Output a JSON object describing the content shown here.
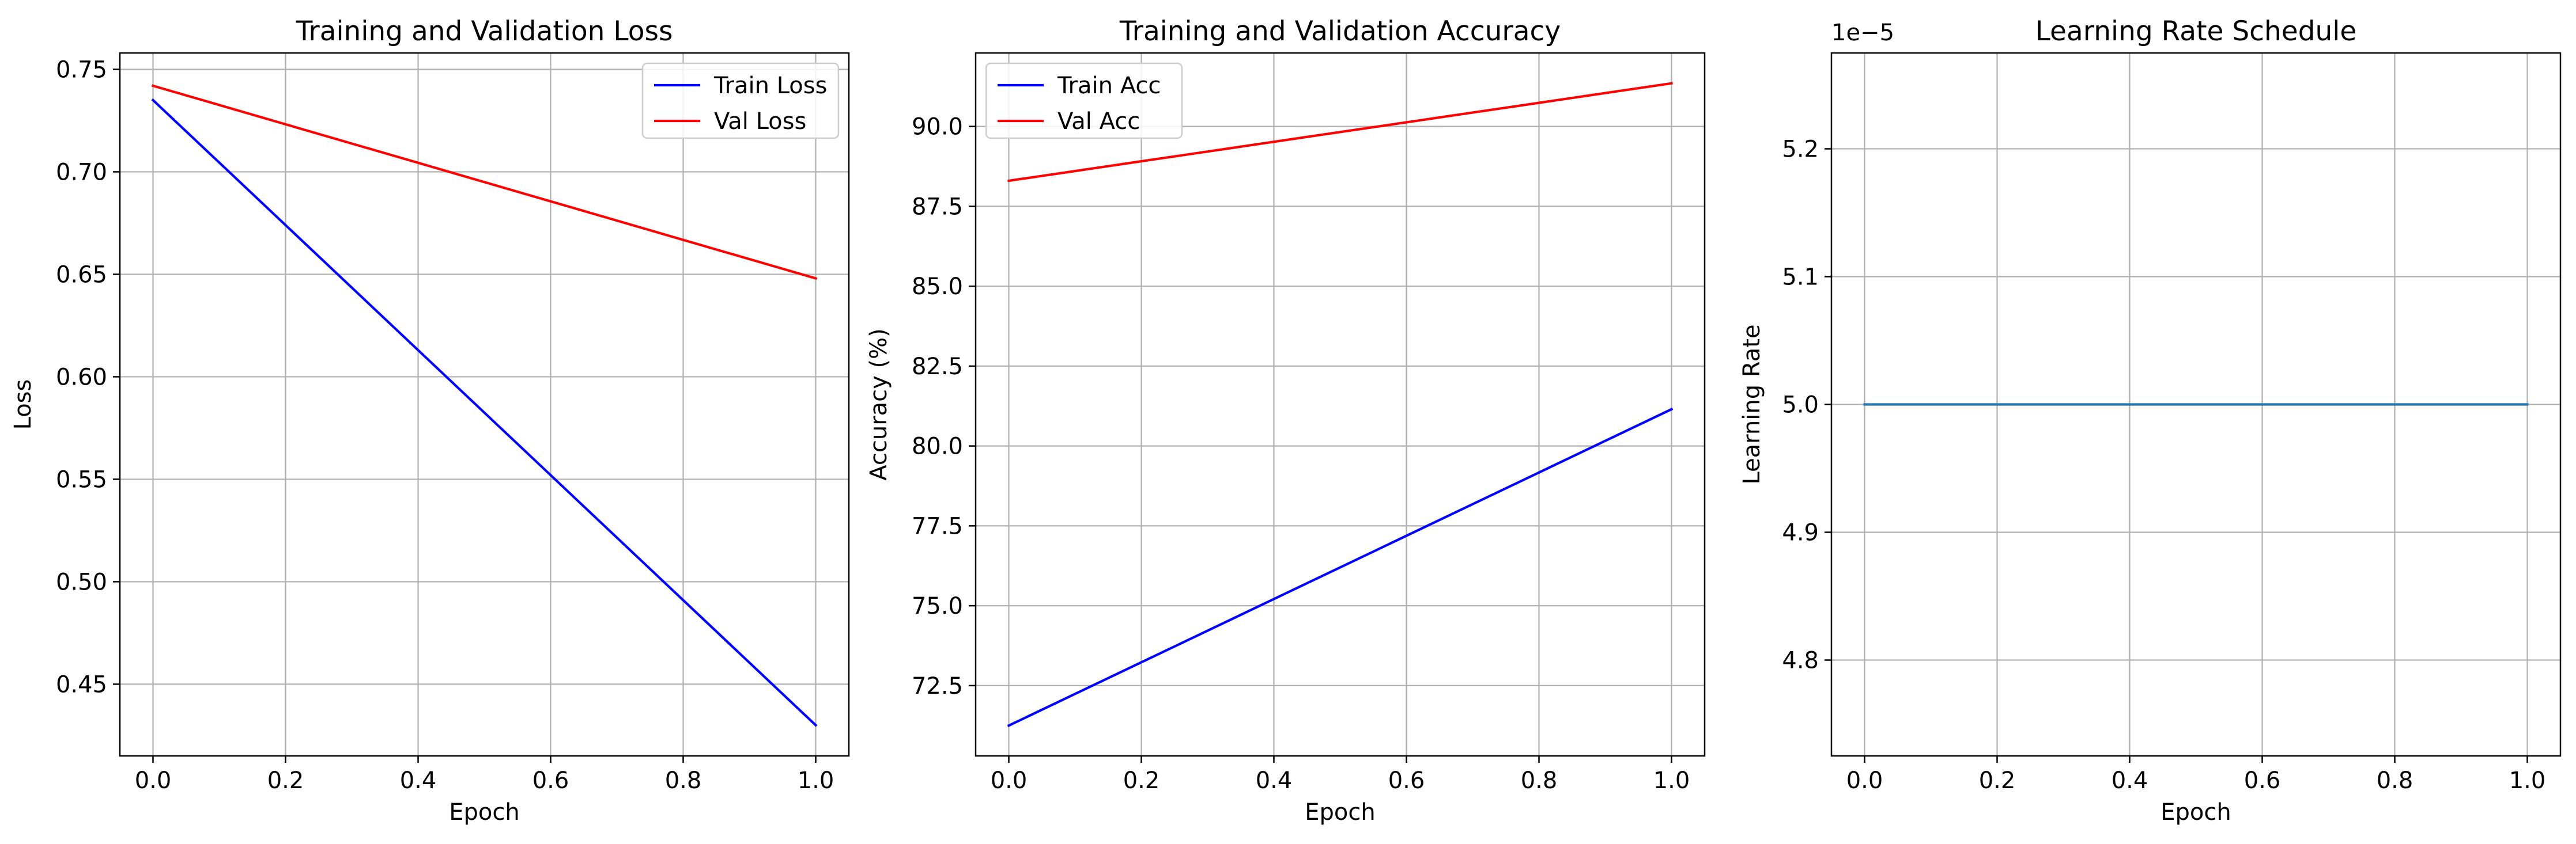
{
  "chart_data": [
    {
      "type": "line",
      "title": "Training and Validation Loss",
      "xlabel": "Epoch",
      "ylabel": "Loss",
      "xlim": [
        -0.05,
        1.05
      ],
      "ylim": [
        0.415,
        0.758
      ],
      "xticks": [
        0.0,
        0.2,
        0.4,
        0.6,
        0.8,
        1.0
      ],
      "xtick_labels": [
        "0.0",
        "0.2",
        "0.4",
        "0.6",
        "0.8",
        "1.0"
      ],
      "yticks": [
        0.45,
        0.5,
        0.55,
        0.6,
        0.65,
        0.7,
        0.75
      ],
      "ytick_labels": [
        "0.45",
        "0.50",
        "0.55",
        "0.60",
        "0.65",
        "0.70",
        "0.75"
      ],
      "grid": true,
      "legend": "top-right",
      "series": [
        {
          "name": "Train Loss",
          "color": "#0000ff",
          "x": [
            0.0,
            1.0
          ],
          "y": [
            0.735,
            0.43
          ]
        },
        {
          "name": "Val Loss",
          "color": "#ff0000",
          "x": [
            0.0,
            1.0
          ],
          "y": [
            0.742,
            0.648
          ]
        }
      ]
    },
    {
      "type": "line",
      "title": "Training and Validation Accuracy",
      "xlabel": "Epoch",
      "ylabel": "Accuracy (%)",
      "xlim": [
        -0.05,
        1.05
      ],
      "ylim": [
        70.3,
        92.3
      ],
      "xticks": [
        0.0,
        0.2,
        0.4,
        0.6,
        0.8,
        1.0
      ],
      "xtick_labels": [
        "0.0",
        "0.2",
        "0.4",
        "0.6",
        "0.8",
        "1.0"
      ],
      "yticks": [
        72.5,
        75.0,
        77.5,
        80.0,
        82.5,
        85.0,
        87.5,
        90.0
      ],
      "ytick_labels": [
        "72.5",
        "75.0",
        "77.5",
        "80.0",
        "82.5",
        "85.0",
        "87.5",
        "90.0"
      ],
      "grid": true,
      "legend": "top-left",
      "series": [
        {
          "name": "Train Acc",
          "color": "#0000ff",
          "x": [
            0.0,
            1.0
          ],
          "y": [
            71.25,
            81.15
          ]
        },
        {
          "name": "Val Acc",
          "color": "#ff0000",
          "x": [
            0.0,
            1.0
          ],
          "y": [
            88.3,
            91.35
          ]
        }
      ]
    },
    {
      "type": "line",
      "title": "Learning Rate Schedule",
      "xlabel": "Epoch",
      "ylabel": "Learning Rate",
      "offset_text": "1e−5",
      "xlim": [
        -0.05,
        1.05
      ],
      "ylim": [
        4.725,
        5.275
      ],
      "xticks": [
        0.0,
        0.2,
        0.4,
        0.6,
        0.8,
        1.0
      ],
      "xtick_labels": [
        "0.0",
        "0.2",
        "0.4",
        "0.6",
        "0.8",
        "1.0"
      ],
      "yticks": [
        4.8,
        4.9,
        5.0,
        5.1,
        5.2
      ],
      "ytick_labels": [
        "4.8",
        "4.9",
        "5.0",
        "5.1",
        "5.2"
      ],
      "grid": true,
      "legend": "none",
      "series": [
        {
          "color": "#1f77b4",
          "x": [
            0.0,
            1.0
          ],
          "y": [
            5.0,
            5.0
          ]
        }
      ]
    }
  ]
}
